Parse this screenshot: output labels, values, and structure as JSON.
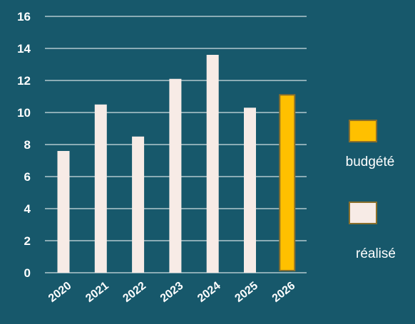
{
  "colors": {
    "background": "#17586b",
    "grid": "#ffffff",
    "realise": "#f7ebe6",
    "budgete": "#ffc000",
    "budgete_border": "#8a6f2c",
    "legend_border": "#8a6f2c"
  },
  "chart_data": {
    "type": "bar",
    "categories": [
      "2020",
      "2021",
      "2022",
      "2023",
      "2024",
      "2025",
      "2026"
    ],
    "series": [
      {
        "name": "réalisé",
        "values": [
          7.6,
          10.5,
          8.5,
          12.1,
          13.6,
          10.3,
          null
        ]
      },
      {
        "name": "budgété",
        "values": [
          null,
          null,
          null,
          null,
          null,
          null,
          11.1
        ]
      }
    ],
    "yticks": [
      "0",
      "2",
      "4",
      "6",
      "8",
      "10",
      "12",
      "14",
      "16"
    ],
    "ylim": [
      0,
      16
    ],
    "grid": true,
    "legend_position": "right"
  }
}
